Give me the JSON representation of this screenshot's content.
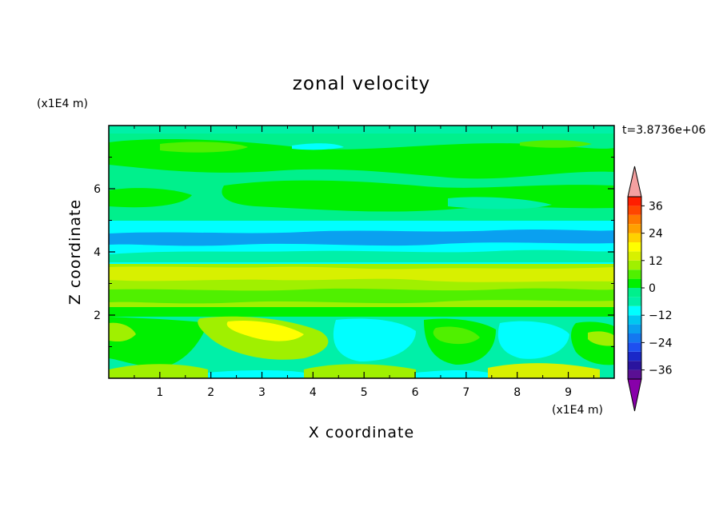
{
  "chart_data": {
    "type": "heatmap",
    "title": "zonal velocity",
    "xlabel": "X coordinate",
    "ylabel": "Z coordinate",
    "x_unit": "(x1E4 m)",
    "y_unit": "(x1E4 m)",
    "time_label": "t=3.8736e+06",
    "xlim": [
      0,
      9.9
    ],
    "ylim": [
      0,
      8
    ],
    "x_ticks": [
      "1",
      "2",
      "3",
      "4",
      "5",
      "6",
      "7",
      "8",
      "9"
    ],
    "y_ticks": [
      "2",
      "4",
      "6"
    ],
    "colorbar": {
      "levels": [
        -40,
        -36,
        -32,
        -28,
        -24,
        -20,
        -16,
        -12,
        -8,
        -4,
        0,
        4,
        8,
        12,
        16,
        20,
        24,
        28,
        32,
        36,
        40
      ],
      "tick_labels": [
        "36",
        "24",
        "12",
        "0",
        "-12",
        "-24",
        "-36"
      ],
      "colors": [
        "#5a0f94",
        "#2a149e",
        "#1a28c8",
        "#1e50f0",
        "#1478f0",
        "#0aa0f0",
        "#00c8f0",
        "#00ffff",
        "#00f0a8",
        "#00f08c",
        "#00f000",
        "#50f000",
        "#a0f000",
        "#d8f000",
        "#ffff00",
        "#ffd200",
        "#ffa000",
        "#ff7800",
        "#ff4600",
        "#ff1e00"
      ],
      "extend_low_color": "#8800aa",
      "extend_high_color": "#f4a0a0"
    }
  }
}
